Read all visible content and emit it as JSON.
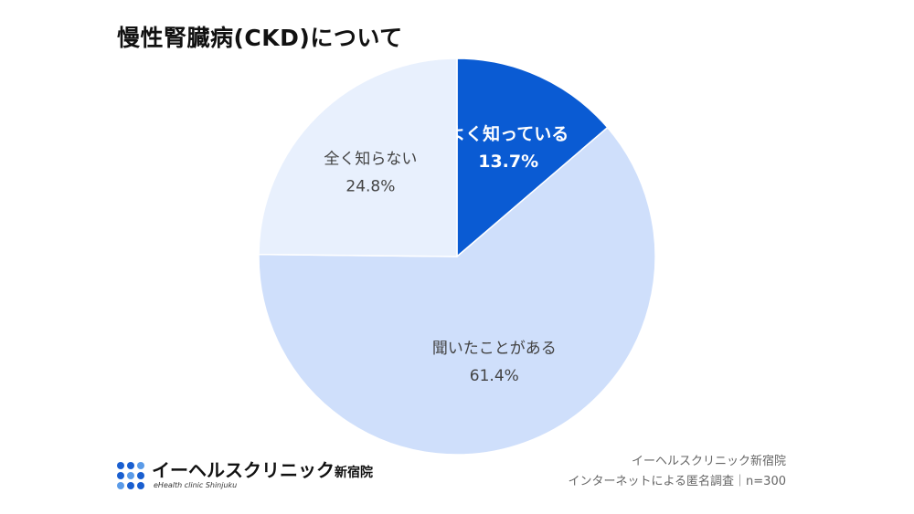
{
  "chart_data": {
    "type": "pie",
    "title": "慢性腎臓病(CKD)について",
    "slices": [
      {
        "label": "よく知っている",
        "value_label": "13.7%",
        "value": 13.7,
        "color": "#0a5bd3",
        "text_color": "#ffffff"
      },
      {
        "label": "聞いたことがある",
        "value_label": "61.4%",
        "value": 61.4,
        "color": "#cfdffb",
        "text_color": "#444444"
      },
      {
        "label": "全く知らない",
        "value_label": "24.8%",
        "value": 24.8,
        "color": "#e8f0fd",
        "text_color": "#444444"
      }
    ],
    "start": "12 o'clock",
    "direction": "clockwise"
  },
  "logo": {
    "main": "イーヘルスクリニック",
    "main_suffix": "新宿院",
    "sub": "eHealth clinic Shinjuku"
  },
  "source": {
    "line1": "イーヘルスクリニック新宿院",
    "line2": "インターネットによる匿名調査｜n=300"
  }
}
